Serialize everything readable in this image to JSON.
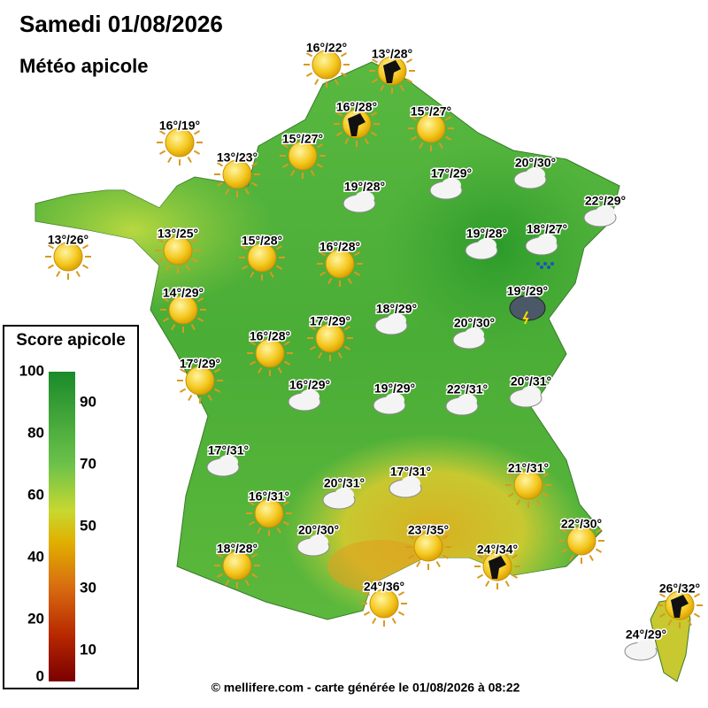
{
  "header": {
    "title": "Samedi 01/08/2026",
    "subtitle": "Météo apicole"
  },
  "legend": {
    "title": "Score apicole",
    "ticks": [
      0,
      10,
      20,
      30,
      40,
      50,
      60,
      70,
      80,
      90,
      100
    ]
  },
  "labels": [
    "16°/22°",
    "13°/28°",
    "16°/28°",
    "15°/27°",
    "16°/19°",
    "15°/27°",
    "13°/23°",
    "17°/29°",
    "20°/30°",
    "19°/28°",
    "22°/29°",
    "13°/26°",
    "13°/25°",
    "15°/28°",
    "16°/28°",
    "19°/28°",
    "18°/27°",
    "14°/29°",
    "19°/29°",
    "18°/29°",
    "17°/29°",
    "20°/30°",
    "16°/28°",
    "17°/29°",
    "16°/29°",
    "19°/29°",
    "22°/31°",
    "20°/31°",
    "17°/31°",
    "17°/31°",
    "21°/31°",
    "16°/31°",
    "20°/31°",
    "20°/30°",
    "23°/35°",
    "22°/30°",
    "18°/28°",
    "24°/34°",
    "24°/36°",
    "26°/32°",
    "24°/29°"
  ],
  "footer": "© mellifere.com - carte générée le 01/08/2026 à 08:22"
}
